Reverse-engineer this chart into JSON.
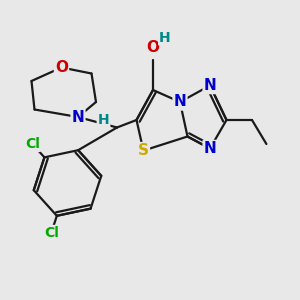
{
  "bg_color": "#e8e8e8",
  "bond_color": "#1a1a1a",
  "bond_width": 1.6,
  "atom_bg": "#e8e8e8",
  "colors": {
    "O": "#cc0000",
    "N": "#0000cc",
    "S": "#ccaa00",
    "Cl": "#00aa00",
    "H": "#008888",
    "C": "#1a1a1a"
  }
}
